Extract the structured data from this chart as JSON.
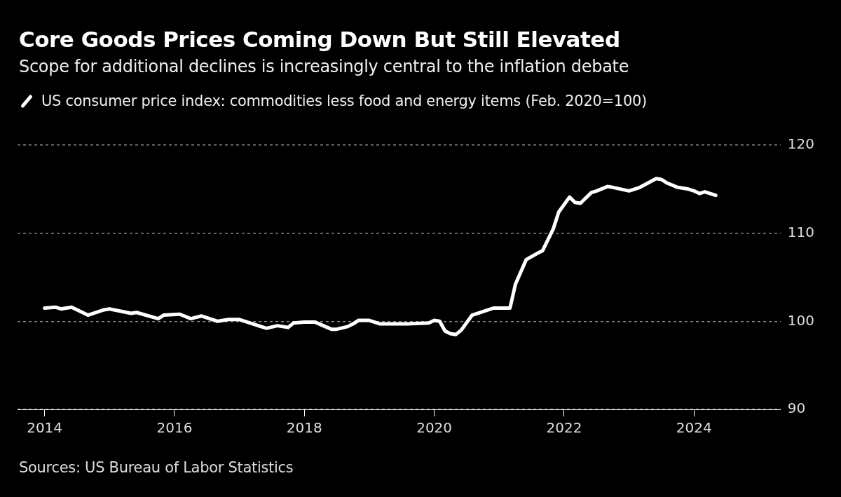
{
  "chart_data": {
    "type": "line",
    "title": "Core Goods Prices Coming Down But Still Elevated",
    "subtitle": "Scope for additional declines is increasingly central to the inflation debate",
    "x": [
      "2014-01",
      "2014-03",
      "2014-04",
      "2014-06",
      "2014-09",
      "2014-12",
      "2015-01",
      "2015-05",
      "2015-06",
      "2015-10",
      "2015-11",
      "2016-02",
      "2016-04",
      "2016-06",
      "2016-09",
      "2016-11",
      "2017-01",
      "2017-03",
      "2017-06",
      "2017-08",
      "2017-10",
      "2017-11",
      "2018-01",
      "2018-03",
      "2018-06",
      "2018-07",
      "2018-09",
      "2018-10",
      "2018-11",
      "2019-01",
      "2019-03",
      "2019-08",
      "2019-12",
      "2020-01",
      "2020-02",
      "2020-03",
      "2020-04",
      "2020-05",
      "2020-06",
      "2020-08",
      "2020-12",
      "2021-01",
      "2021-03",
      "2021-04",
      "2021-06",
      "2021-08",
      "2021-09",
      "2021-11",
      "2021-12",
      "2022-02",
      "2022-03",
      "2022-04",
      "2022-06",
      "2022-07",
      "2022-09",
      "2022-10",
      "2023-01",
      "2023-03",
      "2023-06",
      "2023-07",
      "2023-08",
      "2023-10",
      "2023-11",
      "2023-12",
      "2024-01",
      "2024-02",
      "2024-03",
      "2024-05"
    ],
    "series": [
      {
        "name": "US consumer price index: commodities less food and energy items (Feb. 2020=100)",
        "color": "#ffffff",
        "values": [
          101.5,
          101.6,
          101.4,
          101.6,
          100.7,
          101.3,
          101.4,
          100.9,
          101.0,
          100.3,
          100.7,
          100.8,
          100.3,
          100.6,
          100.0,
          100.2,
          100.2,
          99.8,
          99.2,
          99.5,
          99.3,
          99.8,
          99.9,
          99.9,
          99.1,
          99.1,
          99.4,
          99.7,
          100.1,
          100.1,
          99.7,
          99.7,
          99.8,
          100.1,
          100.0,
          98.9,
          98.6,
          98.5,
          99.0,
          100.7,
          101.5,
          101.5,
          101.5,
          104.2,
          107.0,
          107.7,
          108.0,
          110.5,
          112.4,
          114.1,
          113.5,
          113.4,
          114.6,
          114.8,
          115.3,
          115.2,
          114.8,
          115.2,
          116.2,
          116.1,
          115.7,
          115.2,
          115.1,
          115.0,
          114.8,
          114.5,
          114.7,
          114.3
        ]
      }
    ],
    "xlim": [
      "2013-08",
      "2025-05"
    ],
    "xticks": [
      "2014",
      "2016",
      "2018",
      "2020",
      "2022",
      "2024"
    ],
    "ylim": [
      90,
      120
    ],
    "yticks": [
      90,
      100,
      110,
      120
    ],
    "grid": "y",
    "legend": "top left",
    "marker": "none",
    "line_style": "solid",
    "annotations": [
      "Sources: US Bureau of Labor Statistics"
    ]
  }
}
